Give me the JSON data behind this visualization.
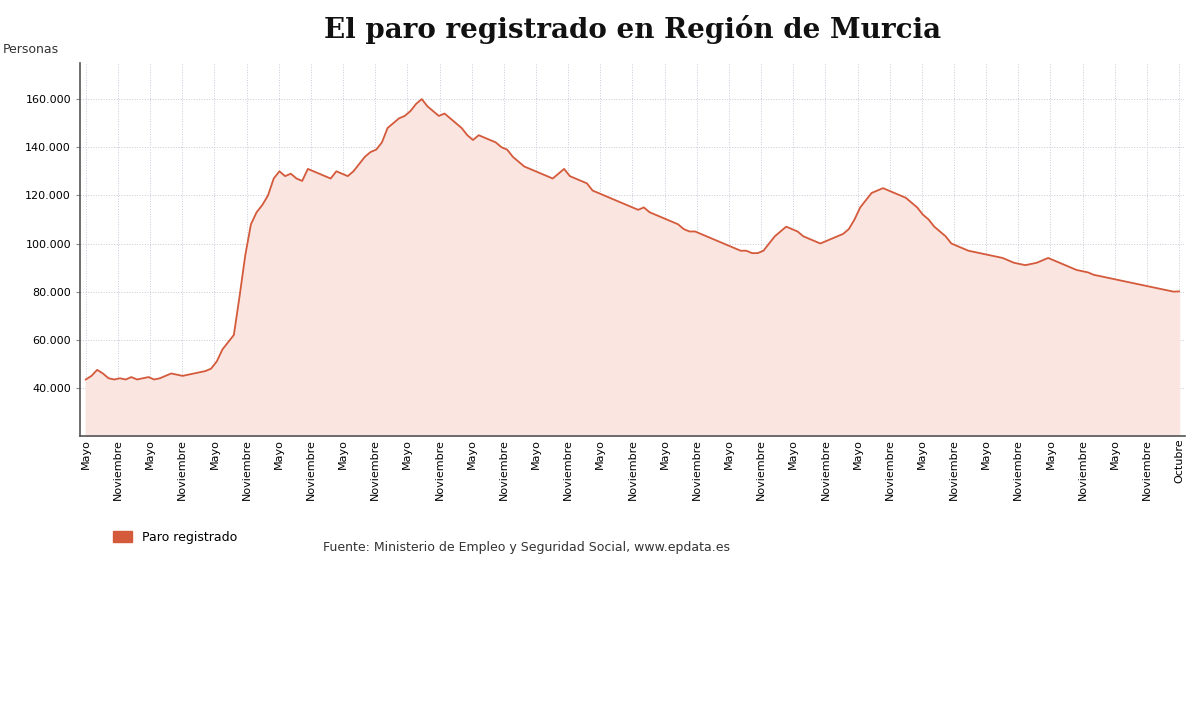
{
  "title": "El paro registrado en Región de Murcia",
  "ylabel": "Personas",
  "legend_label": "Paro registrado",
  "source_text": "Fuente: Ministerio de Empleo y Seguridad Social, www.epdata.es",
  "line_color": "#D45A3C",
  "fill_color": "#FAE5E0",
  "background_color": "#FFFFFF",
  "grid_color": "#C8C8D8",
  "ylim": [
    20000,
    175000
  ],
  "yticks": [
    40000,
    60000,
    80000,
    100000,
    120000,
    140000,
    160000
  ],
  "values": [
    43500,
    45000,
    47500,
    46000,
    44000,
    43500,
    44000,
    43500,
    44500,
    43500,
    44000,
    44500,
    43500,
    44000,
    45000,
    46000,
    45500,
    45000,
    45500,
    46000,
    46500,
    47000,
    48000,
    51000,
    56000,
    59000,
    62000,
    78000,
    95000,
    108000,
    113000,
    116000,
    120000,
    127000,
    130000,
    128000,
    129000,
    127000,
    126000,
    131000,
    130000,
    129000,
    128000,
    127000,
    130000,
    129000,
    128000,
    130000,
    133000,
    136000,
    138000,
    139000,
    142000,
    148000,
    150000,
    152000,
    153000,
    155000,
    158000,
    160000,
    157000,
    155000,
    153000,
    154000,
    152000,
    150000,
    148000,
    145000,
    143000,
    145000,
    144000,
    143000,
    142000,
    140000,
    139000,
    136000,
    134000,
    132000,
    131000,
    130000,
    129000,
    128000,
    127000,
    129000,
    131000,
    128000,
    127000,
    126000,
    125000,
    122000,
    121000,
    120000,
    119000,
    118000,
    117000,
    116000,
    115000,
    114000,
    115000,
    113000,
    112000,
    111000,
    110000,
    109000,
    108000,
    106000,
    105000,
    105000,
    104000,
    103000,
    102000,
    101000,
    100000,
    99000,
    98000,
    97000,
    97000,
    96000,
    96000,
    97000,
    100000,
    103000,
    105000,
    107000,
    106000,
    105000,
    103000,
    102000,
    101000,
    100000,
    101000,
    102000,
    103000,
    104000,
    106000,
    110000,
    115000,
    118000,
    121000,
    122000,
    123000,
    122000,
    121000,
    120000,
    119000,
    117000,
    115000,
    112000,
    110000,
    107000,
    105000,
    103000,
    100000,
    99000,
    98000,
    97000,
    96500,
    96000,
    95500,
    95000,
    94500,
    94000,
    93000,
    92000,
    91500,
    91000,
    91500,
    92000,
    93000,
    94000,
    93000,
    92000,
    91000,
    90000,
    89000,
    88500,
    88000,
    87000,
    86500,
    86000,
    85500,
    85000,
    84500,
    84000,
    83500,
    83000,
    82500,
    82000,
    81500,
    81000,
    80500,
    80000,
    80093
  ],
  "x_tick_labels": [
    "Mayo",
    "Noviembre",
    "Mayo",
    "Noviembre",
    "Mayo",
    "Noviembre",
    "Mayo",
    "Noviembre",
    "Mayo",
    "Noviembre",
    "Mayo",
    "Noviembre",
    "Mayo",
    "Noviembre",
    "Mayo",
    "Noviembre",
    "Mayo",
    "Noviembre",
    "Mayo",
    "Noviembre",
    "Mayo",
    "Noviembre",
    "Mayo",
    "Noviembre",
    "Mayo",
    "Noviembre",
    "Mayo",
    "Noviembre",
    "Mayo",
    "Noviembre",
    "Mayo",
    "Noviembre",
    "Mayo",
    "Noviembre",
    "Octubre"
  ],
  "title_fontsize": 20,
  "axis_label_fontsize": 9,
  "tick_fontsize": 8,
  "legend_fontsize": 9,
  "source_fontsize": 9
}
